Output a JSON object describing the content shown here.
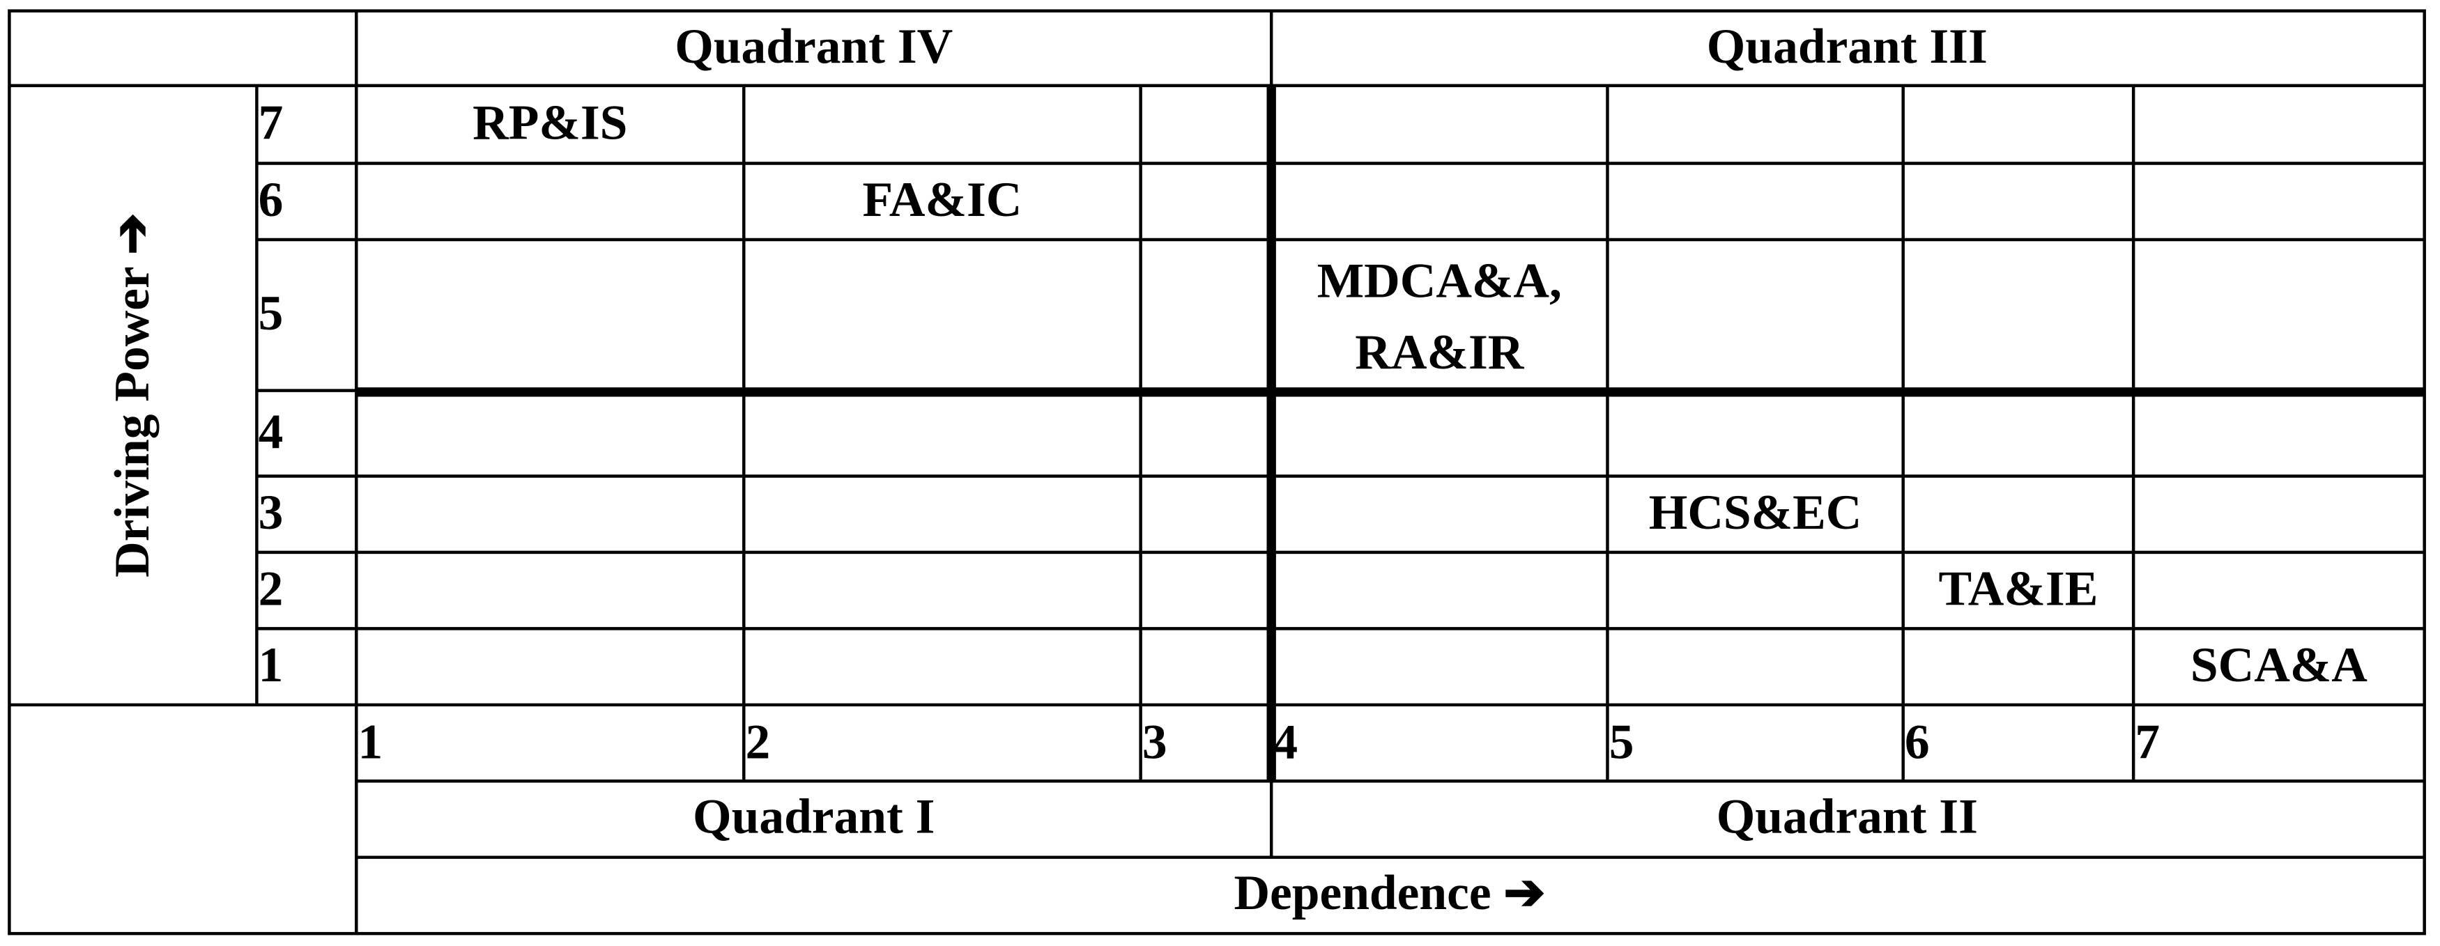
{
  "quadrants": {
    "top_left": "Quadrant IV",
    "top_right": "Quadrant III",
    "bottom_left": "Quadrant I",
    "bottom_right": "Quadrant II"
  },
  "y_axis_label": "Driving Power ➔",
  "x_axis_label": "Dependence ➔",
  "row_labels": [
    7,
    6,
    5,
    4,
    3,
    2,
    1
  ],
  "column_labels": [
    1,
    2,
    3,
    4,
    5,
    6,
    7
  ],
  "cells": [
    [
      "RP&IS",
      null,
      null,
      null,
      null,
      null,
      null
    ],
    [
      null,
      "FA&IC",
      null,
      null,
      null,
      null,
      null
    ],
    [
      null,
      null,
      null,
      [
        "MDCA&A,",
        "RA&IR"
      ],
      null,
      null,
      null
    ],
    [
      null,
      null,
      null,
      null,
      null,
      null,
      null
    ],
    [
      null,
      null,
      null,
      null,
      "HCS&EC",
      null,
      null
    ],
    [
      null,
      null,
      null,
      null,
      null,
      "TA&IE",
      null
    ],
    [
      null,
      null,
      null,
      null,
      null,
      null,
      "SCA&A"
    ]
  ]
}
